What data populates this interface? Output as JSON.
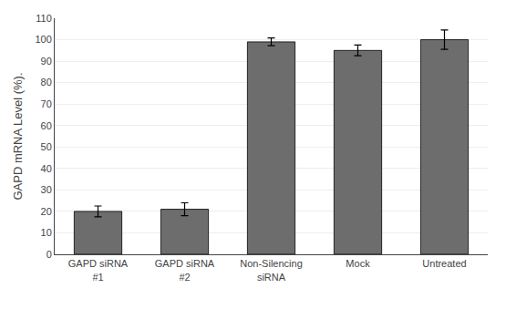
{
  "chart_data": {
    "type": "bar",
    "categories": [
      "GAPD siRNA\n#1",
      "GAPD siRNA\n#2",
      "Non-Silencing\nsiRNA",
      "Mock",
      "Untreated"
    ],
    "values": [
      20,
      21,
      99,
      95,
      100
    ],
    "errors": [
      2.5,
      3.0,
      1.8,
      2.5,
      4.5
    ],
    "color": "#6d6d6d",
    "ylabel": "GAPD mRNA Level (%).",
    "ylim": [
      0,
      110
    ],
    "yticks": [
      0,
      10,
      20,
      30,
      40,
      50,
      60,
      70,
      80,
      90,
      100,
      110
    ],
    "grid": true
  }
}
